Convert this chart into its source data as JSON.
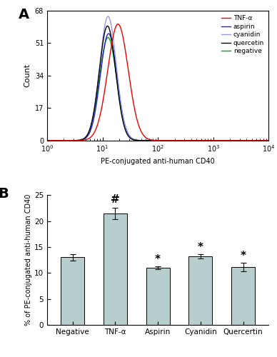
{
  "panel_A_label": "A",
  "panel_B_label": "B",
  "flow_xlim_log": [
    0,
    4
  ],
  "flow_ylim": [
    0,
    68
  ],
  "flow_yticks": [
    0,
    17,
    34,
    51,
    68
  ],
  "flow_xlabel": "PE-conjugated anti-human CD40",
  "flow_ylabel": "Count",
  "bar_categories": [
    "Negative",
    "TNF-α",
    "Aspirin",
    "Cyanidin",
    "Quercertin"
  ],
  "bar_values": [
    13.0,
    21.5,
    11.0,
    13.2,
    11.1
  ],
  "bar_errors": [
    0.6,
    1.1,
    0.3,
    0.4,
    0.8
  ],
  "bar_color": "#b8cece",
  "bar_ylabel": "% of PE-conjugated anti-human CD40",
  "bar_ylim": [
    0,
    25
  ],
  "bar_yticks": [
    0,
    5,
    10,
    15,
    20,
    25
  ],
  "background_color": "white",
  "flow_curves": [
    {
      "key": "negative",
      "label": "negative",
      "mu": 1.1,
      "sigma": 0.155,
      "amp": 54,
      "color": "#00aa00",
      "lw": 1.0
    },
    {
      "key": "aspirin",
      "label": "aspirin",
      "mu": 1.11,
      "sigma": 0.15,
      "amp": 56,
      "color": "#2222dd",
      "lw": 1.0
    },
    {
      "key": "cyanidin",
      "label": "cyanidin",
      "mu": 1.1,
      "sigma": 0.15,
      "amp": 65,
      "color": "#9999ee",
      "lw": 1.0
    },
    {
      "key": "quercetin",
      "label": "quercetin",
      "mu": 1.09,
      "sigma": 0.148,
      "amp": 60,
      "color": "#000000",
      "lw": 1.0
    },
    {
      "key": "TNF-a",
      "label": "TNF-α",
      "mu": 1.28,
      "sigma": 0.185,
      "amp": 61,
      "color": "#ee0000",
      "lw": 1.0
    }
  ],
  "legend_order": [
    "TNF-a",
    "aspirin",
    "cyanidin",
    "quercetin",
    "negative"
  ]
}
